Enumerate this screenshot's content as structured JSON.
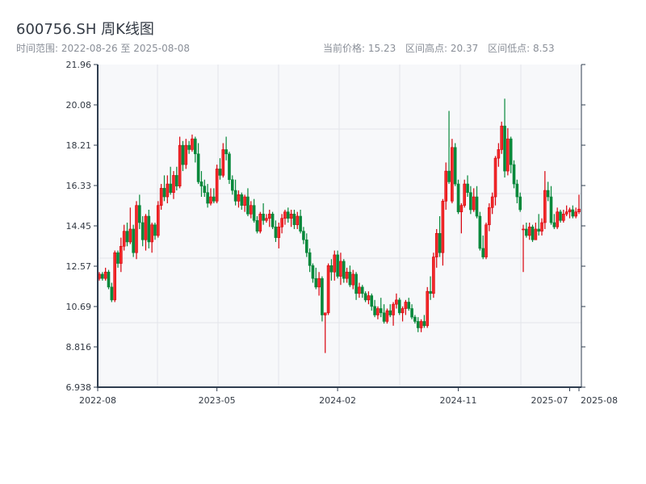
{
  "header": {
    "title": "600756.SH 周K线图",
    "range_label": "时间范围: 2022-08-26 至 2025-08-08",
    "current_price": "当前价格: 15.23",
    "range_high": "区间高点: 20.37",
    "range_low": "区间低点: 8.53"
  },
  "chart_data": {
    "type": "candlestick",
    "title": "600756.SH 周K线图",
    "start_date": "2022-08-26",
    "end_date": "2025-08-08",
    "ylim": [
      6.938,
      21.96
    ],
    "y_ticks": [
      "21.96",
      "20.08",
      "18.21",
      "16.33",
      "14.45",
      "12.57",
      "10.69",
      "8.816",
      "6.938"
    ],
    "x_ticks": [
      {
        "label": "2022-08",
        "index": 0
      },
      {
        "label": "2023-05",
        "index": 38
      },
      {
        "label": "2024-02",
        "index": 77
      },
      {
        "label": "2024-11",
        "index": 116
      },
      {
        "label": "2025-07",
        "index": 152
      },
      {
        "label": "2025-08",
        "index": 155
      }
    ],
    "grid": true,
    "up_color": "#d9000b",
    "up_fill": "#f22a2a",
    "down_color": "#06883a",
    "ohlc_order": [
      "open",
      "high",
      "low",
      "close"
    ],
    "candles": [
      [
        12.0,
        12.3,
        11.9,
        12.2
      ],
      [
        12.2,
        12.3,
        11.9,
        12.0
      ],
      [
        12.0,
        12.5,
        11.9,
        12.3
      ],
      [
        12.3,
        12.4,
        11.5,
        11.6
      ],
      [
        11.6,
        11.8,
        10.9,
        11.0
      ],
      [
        11.0,
        13.3,
        10.9,
        13.2
      ],
      [
        13.2,
        13.3,
        12.5,
        12.7
      ],
      [
        12.7,
        13.9,
        12.3,
        13.5
      ],
      [
        13.5,
        14.5,
        13.3,
        14.2
      ],
      [
        14.2,
        14.6,
        13.5,
        13.7
      ],
      [
        13.7,
        15.3,
        13.6,
        14.3
      ],
      [
        14.3,
        14.5,
        13.0,
        13.2
      ],
      [
        13.2,
        15.6,
        12.9,
        15.4
      ],
      [
        15.4,
        15.9,
        14.3,
        14.6
      ],
      [
        14.6,
        14.9,
        13.5,
        13.8
      ],
      [
        13.8,
        15.0,
        13.3,
        14.9
      ],
      [
        14.9,
        15.2,
        13.4,
        13.7
      ],
      [
        13.7,
        14.6,
        13.2,
        14.5
      ],
      [
        14.5,
        14.6,
        13.8,
        14.0
      ],
      [
        14.0,
        15.6,
        13.9,
        15.4
      ],
      [
        15.4,
        16.4,
        15.2,
        16.2
      ],
      [
        16.2,
        16.8,
        15.6,
        15.8
      ],
      [
        15.8,
        16.8,
        15.5,
        16.4
      ],
      [
        16.4,
        17.2,
        15.9,
        16.0
      ],
      [
        16.0,
        17.0,
        15.7,
        16.8
      ],
      [
        16.8,
        17.2,
        16.1,
        16.3
      ],
      [
        16.3,
        18.6,
        16.2,
        18.2
      ],
      [
        18.2,
        18.4,
        17.0,
        17.3
      ],
      [
        17.3,
        18.5,
        17.1,
        18.2
      ],
      [
        18.2,
        18.4,
        17.8,
        18.0
      ],
      [
        18.0,
        18.7,
        17.9,
        18.5
      ],
      [
        18.5,
        18.6,
        17.4,
        17.8
      ],
      [
        17.8,
        18.3,
        16.4,
        16.5
      ],
      [
        16.5,
        17.0,
        15.8,
        16.3
      ],
      [
        16.3,
        16.6,
        15.8,
        16.0
      ],
      [
        16.0,
        16.4,
        15.3,
        15.5
      ],
      [
        15.5,
        16.2,
        15.4,
        15.8
      ],
      [
        15.8,
        16.2,
        15.5,
        15.6
      ],
      [
        15.6,
        17.3,
        15.5,
        17.1
      ],
      [
        17.1,
        17.6,
        16.6,
        16.8
      ],
      [
        16.8,
        18.3,
        16.7,
        18.0
      ],
      [
        18.0,
        18.6,
        17.5,
        17.8
      ],
      [
        17.8,
        17.9,
        16.4,
        16.6
      ],
      [
        16.6,
        16.8,
        15.9,
        16.1
      ],
      [
        16.1,
        16.6,
        15.4,
        15.6
      ],
      [
        15.6,
        16.1,
        15.3,
        15.9
      ],
      [
        15.9,
        16.0,
        15.2,
        15.4
      ],
      [
        15.4,
        15.9,
        15.1,
        15.8
      ],
      [
        15.8,
        16.2,
        14.9,
        15.0
      ],
      [
        15.0,
        15.6,
        14.8,
        15.4
      ],
      [
        15.4,
        15.7,
        14.6,
        14.7
      ],
      [
        14.7,
        14.9,
        14.1,
        14.2
      ],
      [
        14.2,
        15.1,
        14.1,
        15.0
      ],
      [
        15.0,
        15.5,
        14.5,
        14.7
      ],
      [
        14.7,
        15.0,
        14.6,
        14.8
      ],
      [
        14.8,
        15.2,
        14.4,
        15.0
      ],
      [
        15.0,
        15.1,
        14.3,
        14.4
      ],
      [
        14.4,
        14.7,
        13.7,
        13.9
      ],
      [
        13.9,
        14.6,
        13.4,
        14.4
      ],
      [
        14.4,
        15.0,
        14.1,
        14.8
      ],
      [
        14.8,
        15.2,
        14.5,
        15.1
      ],
      [
        15.1,
        15.3,
        14.6,
        14.8
      ],
      [
        14.8,
        15.2,
        14.4,
        15.0
      ],
      [
        15.0,
        15.2,
        14.3,
        14.5
      ],
      [
        14.5,
        15.1,
        14.3,
        14.9
      ],
      [
        14.9,
        15.2,
        14.1,
        14.2
      ],
      [
        14.2,
        14.4,
        13.6,
        13.8
      ],
      [
        13.8,
        14.1,
        13.0,
        13.2
      ],
      [
        13.2,
        13.4,
        12.3,
        12.6
      ],
      [
        12.6,
        12.7,
        11.8,
        12.0
      ],
      [
        12.0,
        12.5,
        11.5,
        11.6
      ],
      [
        11.6,
        12.3,
        11.2,
        12.0
      ],
      [
        12.0,
        12.1,
        10.0,
        10.3
      ],
      [
        10.3,
        10.4,
        8.53,
        10.4
      ],
      [
        10.4,
        12.7,
        10.3,
        12.6
      ],
      [
        12.6,
        12.9,
        11.9,
        12.3
      ],
      [
        12.3,
        13.3,
        11.9,
        13.1
      ],
      [
        13.1,
        13.3,
        12.0,
        12.1
      ],
      [
        12.1,
        13.2,
        11.7,
        12.8
      ],
      [
        12.8,
        12.9,
        11.8,
        12.0
      ],
      [
        12.0,
        12.5,
        11.8,
        12.3
      ],
      [
        12.3,
        12.6,
        11.6,
        11.7
      ],
      [
        11.7,
        12.4,
        11.5,
        12.2
      ],
      [
        12.2,
        12.3,
        11.0,
        11.3
      ],
      [
        11.3,
        11.8,
        11.1,
        11.6
      ],
      [
        11.6,
        11.7,
        11.1,
        11.3
      ],
      [
        11.3,
        11.4,
        10.9,
        11.0
      ],
      [
        11.0,
        11.4,
        10.8,
        11.2
      ],
      [
        11.2,
        11.3,
        10.5,
        10.7
      ],
      [
        10.7,
        11.0,
        10.2,
        10.3
      ],
      [
        10.3,
        10.7,
        10.1,
        10.6
      ],
      [
        10.6,
        11.1,
        10.2,
        10.4
      ],
      [
        10.4,
        10.8,
        9.9,
        10.0
      ],
      [
        10.0,
        10.6,
        9.9,
        10.5
      ],
      [
        10.5,
        10.8,
        10.2,
        10.3
      ],
      [
        10.3,
        10.9,
        9.8,
        10.8
      ],
      [
        10.8,
        11.3,
        10.6,
        11.0
      ],
      [
        11.0,
        11.1,
        10.3,
        10.4
      ],
      [
        10.4,
        10.7,
        10.0,
        10.6
      ],
      [
        10.6,
        11.0,
        10.3,
        10.9
      ],
      [
        10.9,
        11.1,
        10.5,
        10.6
      ],
      [
        10.6,
        10.8,
        10.1,
        10.2
      ],
      [
        10.2,
        10.3,
        9.9,
        10.0
      ],
      [
        10.0,
        10.2,
        9.5,
        9.7
      ],
      [
        9.7,
        10.1,
        9.5,
        10.0
      ],
      [
        10.0,
        10.3,
        9.7,
        9.8
      ],
      [
        9.8,
        11.6,
        9.7,
        11.4
      ],
      [
        11.4,
        12.1,
        11.0,
        11.3
      ],
      [
        11.3,
        13.2,
        11.1,
        13.0
      ],
      [
        13.0,
        14.3,
        12.5,
        14.1
      ],
      [
        14.1,
        14.9,
        13.0,
        13.2
      ],
      [
        13.2,
        15.7,
        12.6,
        15.6
      ],
      [
        15.6,
        17.4,
        15.2,
        17.0
      ],
      [
        17.0,
        19.8,
        16.4,
        16.5
      ],
      [
        15.6,
        18.5,
        15.5,
        18.1
      ],
      [
        18.1,
        18.3,
        16.3,
        16.4
      ],
      [
        16.4,
        16.6,
        15.0,
        15.1
      ],
      [
        15.1,
        15.5,
        14.1,
        15.4
      ],
      [
        15.4,
        16.6,
        15.3,
        16.4
      ],
      [
        16.4,
        16.8,
        15.8,
        16.0
      ],
      [
        16.0,
        16.3,
        15.0,
        15.2
      ],
      [
        15.2,
        16.2,
        15.1,
        15.8
      ],
      [
        15.8,
        16.3,
        14.8,
        14.9
      ],
      [
        14.9,
        15.1,
        13.3,
        13.4
      ],
      [
        13.4,
        14.0,
        12.9,
        13.0
      ],
      [
        13.0,
        14.6,
        12.9,
        14.5
      ],
      [
        14.5,
        15.5,
        14.2,
        15.3
      ],
      [
        15.3,
        16.0,
        15.0,
        15.8
      ],
      [
        15.8,
        17.7,
        15.4,
        17.6
      ],
      [
        17.6,
        18.3,
        17.2,
        18.0
      ],
      [
        18.0,
        19.3,
        17.8,
        19.1
      ],
      [
        19.1,
        20.37,
        16.7,
        17.0
      ],
      [
        17.0,
        19.0,
        16.8,
        18.5
      ],
      [
        18.5,
        18.6,
        16.9,
        17.3
      ],
      [
        17.3,
        17.5,
        16.2,
        16.4
      ],
      [
        16.4,
        16.6,
        15.5,
        15.8
      ],
      [
        15.8,
        16.0,
        15.1,
        15.2
      ],
      [
        14.3,
        14.5,
        12.3,
        14.3
      ],
      [
        14.3,
        14.6,
        13.9,
        14.0
      ],
      [
        14.0,
        14.6,
        13.8,
        14.4
      ],
      [
        14.4,
        14.5,
        13.7,
        13.8
      ],
      [
        13.8,
        14.6,
        13.8,
        14.3
      ],
      [
        14.3,
        15.0,
        14.0,
        14.2
      ],
      [
        14.2,
        14.8,
        14.0,
        14.6
      ],
      [
        14.6,
        17.0,
        14.3,
        16.1
      ],
      [
        16.1,
        16.5,
        15.6,
        15.8
      ],
      [
        15.8,
        16.3,
        14.5,
        14.6
      ],
      [
        14.6,
        15.0,
        14.3,
        14.4
      ],
      [
        14.4,
        15.3,
        14.3,
        15.1
      ],
      [
        15.1,
        15.2,
        14.6,
        14.7
      ],
      [
        14.7,
        15.2,
        14.6,
        15.0
      ],
      [
        15.0,
        15.4,
        14.9,
        15.1
      ],
      [
        15.1,
        15.3,
        14.8,
        15.2
      ],
      [
        15.2,
        15.4,
        14.8,
        14.9
      ],
      [
        14.9,
        15.3,
        14.8,
        15.1
      ],
      [
        15.1,
        15.9,
        15.0,
        15.23
      ]
    ]
  }
}
